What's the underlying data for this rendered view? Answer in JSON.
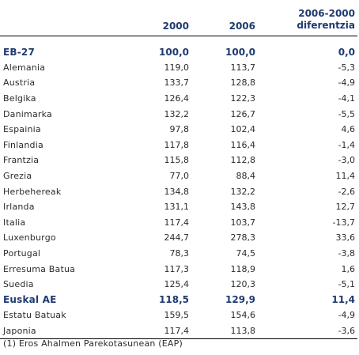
{
  "table": {
    "headers": {
      "country": "",
      "y2000": "2000",
      "y2006": "2006",
      "diff_line1": "2006-2000",
      "diff_line2": "diferentzia"
    },
    "rows": [
      {
        "name": "EB-27",
        "v2000": "100,0",
        "v2006": "100,0",
        "diff": "0,0",
        "emphasis": true
      },
      {
        "name": "Alemania",
        "v2000": "119,0",
        "v2006": "113,7",
        "diff": "-5,3"
      },
      {
        "name": "Austria",
        "v2000": "133,7",
        "v2006": "128,8",
        "diff": "-4,9"
      },
      {
        "name": "Belgika",
        "v2000": "126,4",
        "v2006": "122,3",
        "diff": "-4,1"
      },
      {
        "name": "Danimarka",
        "v2000": "132,2",
        "v2006": "126,7",
        "diff": "-5,5"
      },
      {
        "name": "Espainia",
        "v2000": "97,8",
        "v2006": "102,4",
        "diff": "4,6"
      },
      {
        "name": "Finlandia",
        "v2000": "117,8",
        "v2006": "116,4",
        "diff": "-1,4"
      },
      {
        "name": "Frantzia",
        "v2000": "115,8",
        "v2006": "112,8",
        "diff": "-3,0"
      },
      {
        "name": "Grezia",
        "v2000": "77,0",
        "v2006": "88,4",
        "diff": "11,4"
      },
      {
        "name": "Herbehereak",
        "v2000": "134,8",
        "v2006": "132,2",
        "diff": "-2,6"
      },
      {
        "name": "Irlanda",
        "v2000": "131,1",
        "v2006": "143,8",
        "diff": "12,7"
      },
      {
        "name": "Italia",
        "v2000": "117,4",
        "v2006": "103,7",
        "diff": "-13,7"
      },
      {
        "name": "Luxenburgo",
        "v2000": "244,7",
        "v2006": "278,3",
        "diff": "33,6"
      },
      {
        "name": "Portugal",
        "v2000": "78,3",
        "v2006": "74,5",
        "diff": "-3,8"
      },
      {
        "name": "Erresuma Batua",
        "v2000": "117,3",
        "v2006": "118,9",
        "diff": "1,6"
      },
      {
        "name": "Suedia",
        "v2000": "125,4",
        "v2006": "120,3",
        "diff": "-5,1"
      },
      {
        "name": "Euskal AE",
        "v2000": "118,5",
        "v2006": "129,9",
        "diff": "11,4",
        "emphasis": true
      },
      {
        "name": "Estatu Batuak",
        "v2000": "159,5",
        "v2006": "154,6",
        "diff": "-4,9"
      },
      {
        "name": "Japonia",
        "v2000": "117,4",
        "v2006": "113,8",
        "diff": "-3,6"
      }
    ]
  },
  "footnote": "(1) Eros Ahalmen Parekotasunean (EAP)"
}
